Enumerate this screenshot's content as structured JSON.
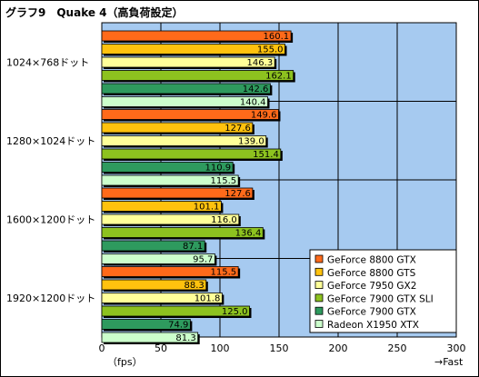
{
  "chart_data": {
    "type": "bar",
    "orientation": "horizontal",
    "title": "グラフ9　Quake 4（高負荷設定）",
    "categories": [
      "1024×768ドット",
      "1280×1024ドット",
      "1600×1200ドット",
      "1920×1200ドット"
    ],
    "series": [
      {
        "name": "GeForce 8800 GTX",
        "color": "#ff6a1a",
        "values": [
          160.1,
          149.6,
          127.6,
          115.5
        ]
      },
      {
        "name": "GeForce 8800 GTS",
        "color": "#ffc20e",
        "values": [
          155.0,
          127.6,
          101.1,
          88.3
        ]
      },
      {
        "name": "GeForce 7950 GX2",
        "color": "#ffff99",
        "values": [
          146.3,
          139.0,
          116.0,
          101.8
        ]
      },
      {
        "name": "GeForce 7900 GTX SLI",
        "color": "#8dc21f",
        "values": [
          162.1,
          151.4,
          136.4,
          125.0
        ]
      },
      {
        "name": "GeForce 7900 GTX",
        "color": "#2e9a5e",
        "values": [
          142.6,
          110.9,
          87.1,
          74.9
        ]
      },
      {
        "name": "Radeon X1950 XTX",
        "color": "#ccffcc",
        "values": [
          140.4,
          115.5,
          95.7,
          81.3
        ]
      }
    ],
    "xlim": [
      0,
      300
    ],
    "xticks": [
      "0",
      "50",
      "100",
      "150",
      "200",
      "250",
      "300"
    ],
    "xunit": "（fps）",
    "xnote": "→Fast",
    "grid": true,
    "plot_background": "#a6caf0",
    "legend_position": "bottom-right"
  }
}
